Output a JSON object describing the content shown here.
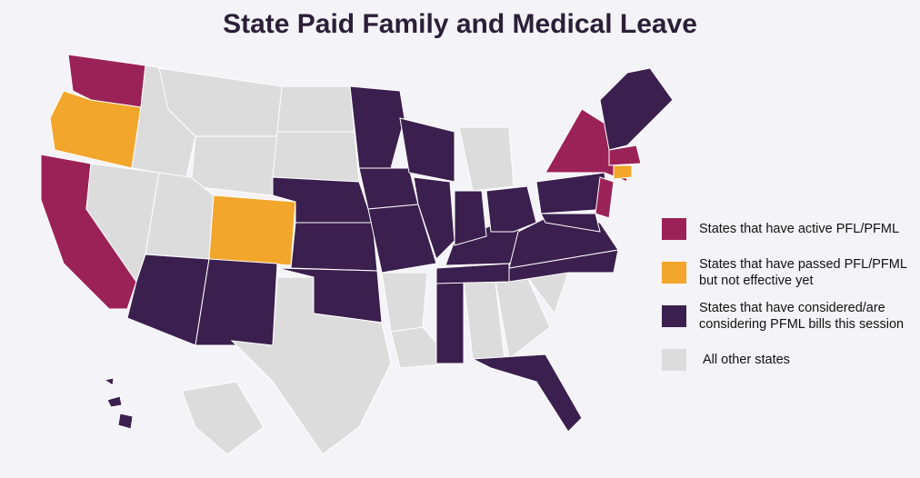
{
  "title": "State Paid Family and Medical Leave",
  "legend": [
    {
      "label": "States that have active PFL/PFML",
      "color": "#9b2257"
    },
    {
      "label": "States that have passed PFL/PFML but not effective yet",
      "color": "#f2a62b"
    },
    {
      "label": "States that have considered/are considering PFML bills this session",
      "color": "#3b1f4e"
    },
    {
      "label": "All other states",
      "color": "#dcdcdc"
    }
  ]
}
